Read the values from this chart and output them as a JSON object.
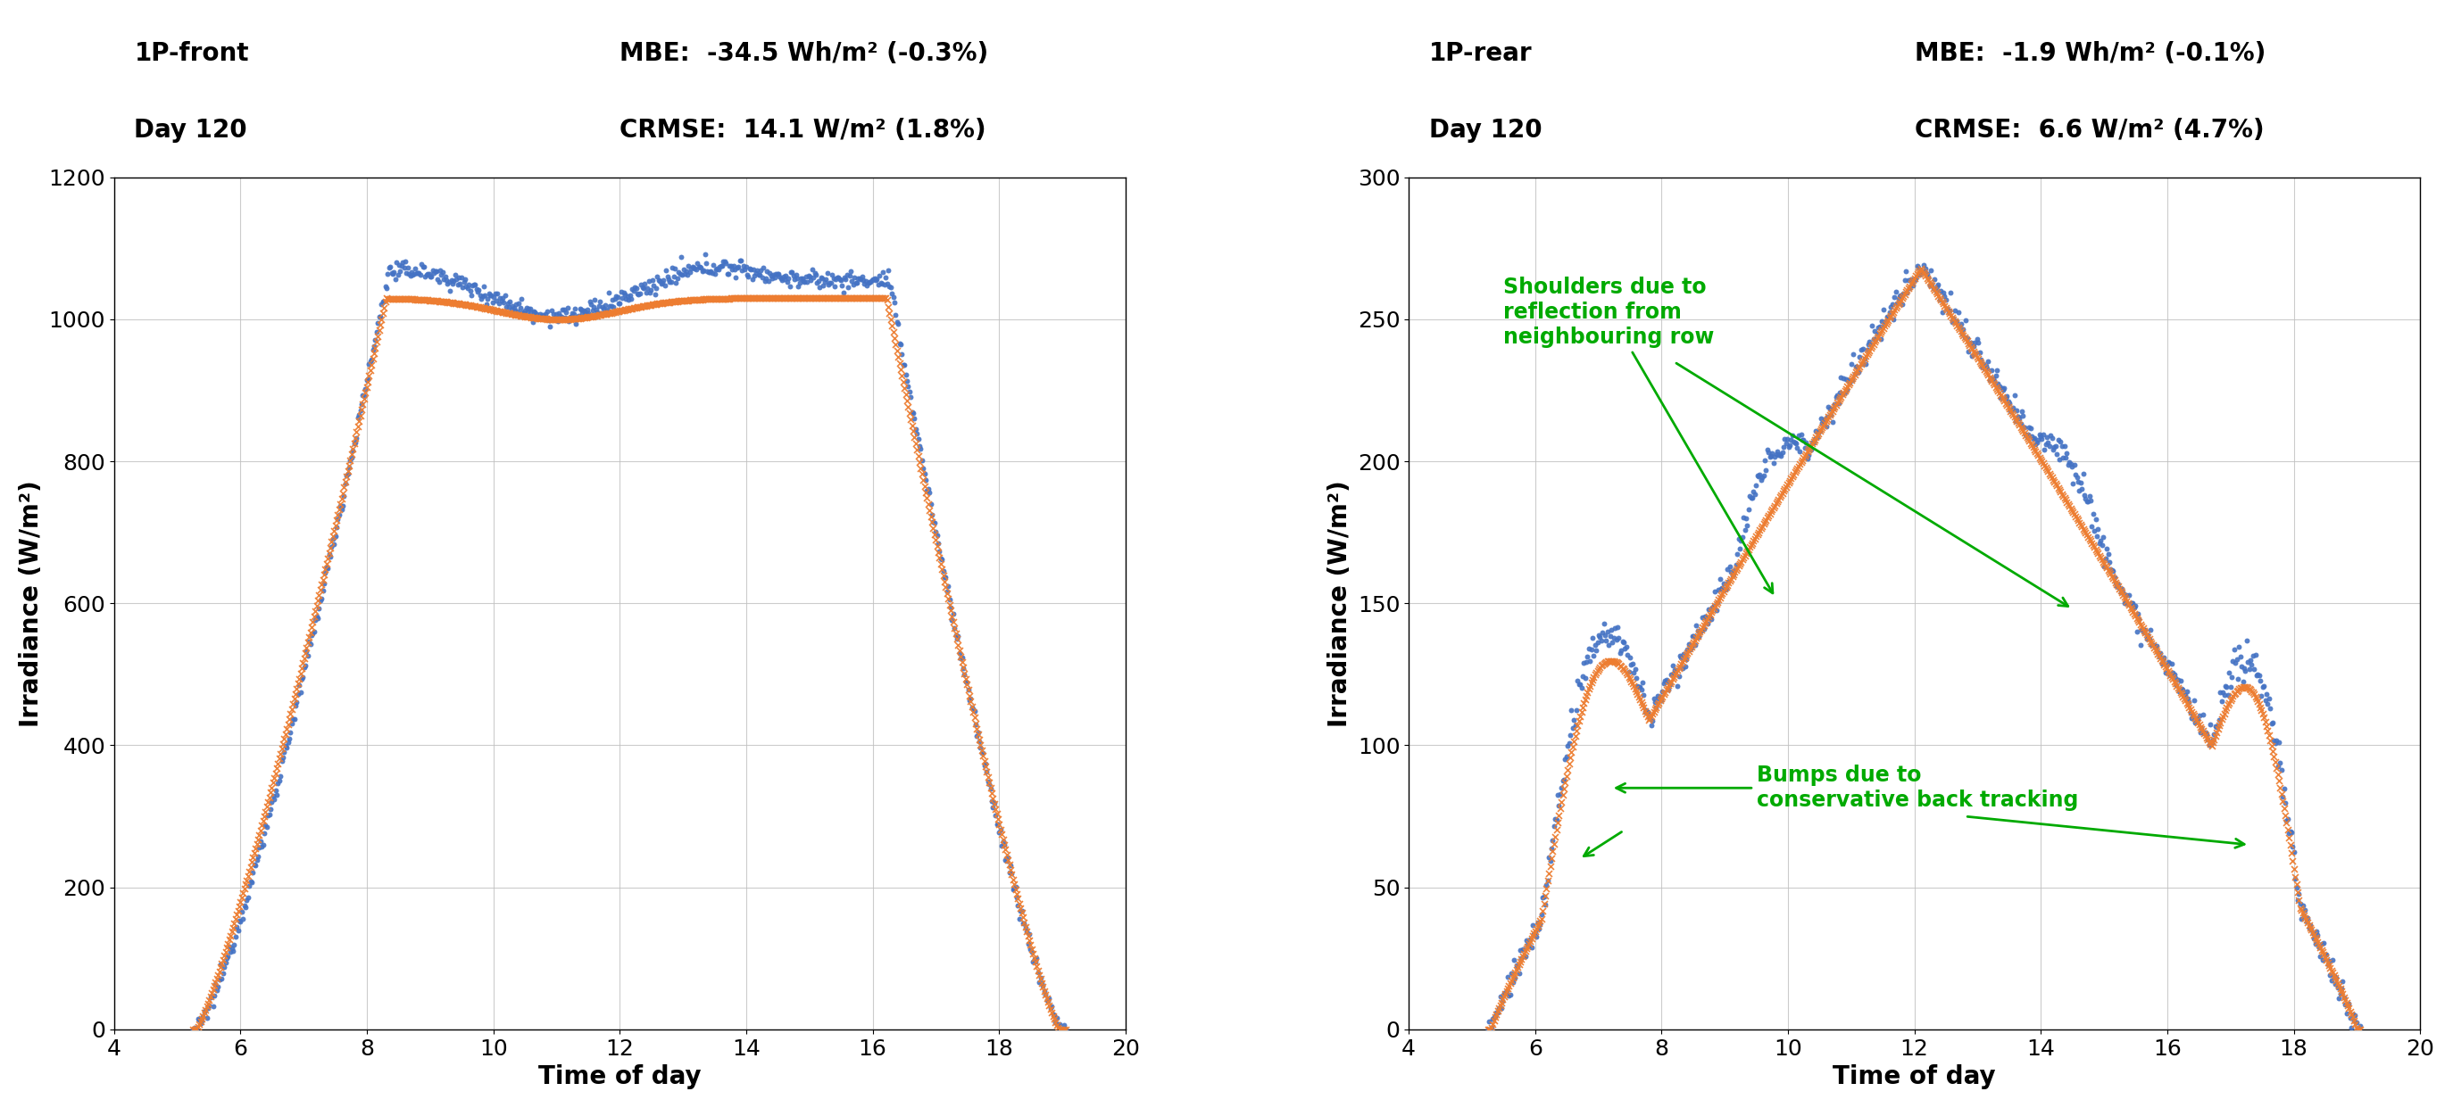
{
  "left_title_line1": "1P-front",
  "left_title_line2": "Day 120",
  "left_mbe": "MBE:  -34.5 Wh/m² (-0.3%)",
  "left_crmse": "CRMSE:  14.1 W/m² (1.8%)",
  "right_title_line1": "1P-rear",
  "right_title_line2": "Day 120",
  "right_mbe": "MBE:  -1.9 Wh/m² (-0.1%)",
  "right_crmse": "CRMSE:  6.6 W/m² (4.7%)",
  "xlabel": "Time of day",
  "ylabel": "Irradiance (W/m²)",
  "left_ylim": [
    0,
    1200
  ],
  "right_ylim": [
    0,
    300
  ],
  "xlim": [
    4,
    20
  ],
  "xticks": [
    4,
    6,
    8,
    10,
    12,
    14,
    16,
    18,
    20
  ],
  "left_yticks": [
    0,
    200,
    400,
    600,
    800,
    1000,
    1200
  ],
  "right_yticks": [
    0,
    50,
    100,
    150,
    200,
    250,
    300
  ],
  "exp_color": "#4472C4",
  "sim_color": "#ED7D31",
  "bg_color": "#FFFFFF",
  "grid_color": "#C0C0C0",
  "annotation_color": "#00AA00",
  "title_fontsize": 20,
  "label_fontsize": 20,
  "tick_fontsize": 18,
  "annotation_fontsize": 17
}
